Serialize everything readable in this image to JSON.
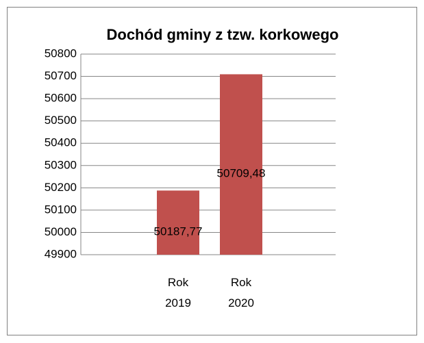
{
  "chart_data": {
    "type": "bar",
    "title": "Dochód gminy z tzw. korkowego",
    "categories": [
      "Rok 2019",
      "Rok 2020"
    ],
    "values": [
      50187.77,
      50709.48
    ],
    "value_labels": [
      "50187,77",
      "50709,48"
    ],
    "color": "#c0504d",
    "ylim": [
      49900,
      50800
    ],
    "yticks": [
      49900,
      50000,
      50100,
      50200,
      50300,
      50400,
      50500,
      50600,
      50700,
      50800
    ],
    "grid": true
  }
}
